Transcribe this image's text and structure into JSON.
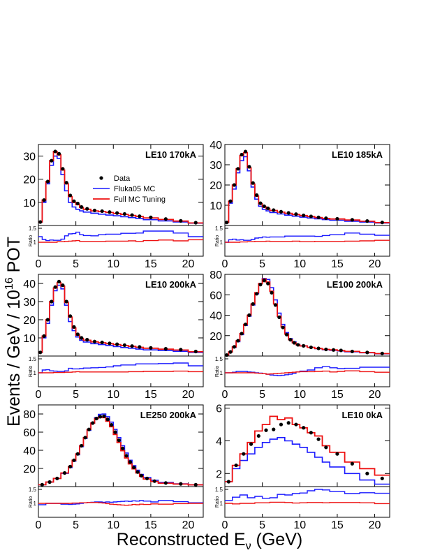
{
  "figure": {
    "ylabel_prefix": "Events / GeV / 10",
    "ylabel_exp": "16",
    "ylabel_suffix": " POT",
    "xlabel_prefix": "Reconstructed E",
    "xlabel_sub": "ν",
    "xlabel_suffix": " (GeV)",
    "ratio_label": "Ratio",
    "legend": {
      "data": "Data",
      "fluka": "Fluka05 MC",
      "tuned": "Full MC Tuning"
    },
    "colors": {
      "data": "#000000",
      "fluka": "#1a1aff",
      "tuned": "#ee1111"
    }
  },
  "chart_data": [
    {
      "type": "line",
      "title": "LE10 170kA",
      "xlim": [
        0,
        22
      ],
      "ylim": [
        0,
        35
      ],
      "yticks": [
        10,
        20,
        30
      ],
      "xticks": [
        0,
        5,
        10,
        15,
        20
      ],
      "show_legend": true,
      "bins": [
        0,
        0.5,
        1,
        1.5,
        2,
        2.5,
        3,
        3.5,
        4,
        4.5,
        5,
        5.5,
        6,
        7,
        8,
        9,
        10,
        11,
        12,
        13,
        14,
        16,
        18,
        20,
        22
      ],
      "data": [
        1.5,
        11,
        19,
        28,
        32,
        31,
        24.5,
        18.5,
        13,
        10.5,
        9.5,
        8,
        7.2,
        6.5,
        6.2,
        5.8,
        5.4,
        5,
        4.5,
        4,
        3.5,
        2.8,
        2,
        1.2
      ],
      "fluka": [
        1.5,
        10,
        18,
        26,
        30,
        29,
        22,
        15,
        10,
        8,
        7,
        6.3,
        5.8,
        5.3,
        4.9,
        4.5,
        4.2,
        3.8,
        3.4,
        3,
        2.5,
        2,
        1.5,
        1
      ],
      "tuned": [
        1.5,
        11,
        19,
        28,
        32,
        30.5,
        24,
        18,
        12.5,
        10,
        9,
        7.8,
        7,
        6.3,
        6,
        5.6,
        5.2,
        4.8,
        4.3,
        3.9,
        3.3,
        2.6,
        1.9,
        1.1
      ],
      "ratio_ylim": [
        0.5,
        1.6
      ],
      "ratio_fluka": [
        1.2,
        1.1,
        1.06,
        1.08,
        1.07,
        1.07,
        1.11,
        1.23,
        1.3,
        1.31,
        1.36,
        1.27,
        1.24,
        1.23,
        1.27,
        1.29,
        1.29,
        1.32,
        1.32,
        1.33,
        1.4,
        1.4,
        1.33,
        1.2
      ],
      "ratio_tuned": [
        1.0,
        1.0,
        1.0,
        1.0,
        1.0,
        1.02,
        1.02,
        1.03,
        1.04,
        1.05,
        1.06,
        1.03,
        1.03,
        1.03,
        1.03,
        1.04,
        1.04,
        1.04,
        1.05,
        1.03,
        1.06,
        1.08,
        1.05,
        1.09
      ]
    },
    {
      "type": "line",
      "title": "LE10 185kA",
      "xlim": [
        0,
        22
      ],
      "ylim": [
        0,
        40
      ],
      "yticks": [
        10,
        20,
        30,
        40
      ],
      "xticks": [
        0,
        5,
        10,
        15,
        20
      ],
      "show_legend": false,
      "bins": [
        0,
        0.5,
        1,
        1.5,
        2,
        2.5,
        3,
        3.5,
        4,
        4.5,
        5,
        5.5,
        6,
        7,
        8,
        9,
        10,
        11,
        12,
        13,
        14,
        16,
        18,
        20,
        22
      ],
      "data": [
        1.5,
        12,
        20,
        28,
        35,
        36.5,
        29,
        21,
        15,
        11,
        9.5,
        8.5,
        7.6,
        6.8,
        6.2,
        5.6,
        5,
        4.5,
        4,
        3.6,
        3.3,
        2.8,
        2.2,
        1.5
      ],
      "fluka": [
        1.5,
        11,
        18,
        26,
        32,
        34,
        27,
        19,
        13,
        9.5,
        8,
        7.2,
        6.4,
        5.7,
        5.1,
        4.6,
        4.1,
        3.7,
        3.3,
        2.9,
        2.6,
        2.1,
        1.7,
        1.2
      ],
      "tuned": [
        1.5,
        12,
        20,
        28,
        34.5,
        36,
        28.5,
        20.5,
        14.5,
        10.7,
        9.2,
        8.2,
        7.4,
        6.6,
        6,
        5.4,
        4.9,
        4.4,
        3.9,
        3.5,
        3.2,
        2.7,
        2.1,
        1.4
      ],
      "ratio_ylim": [
        0.5,
        1.6
      ],
      "ratio_fluka": [
        1.0,
        1.09,
        1.11,
        1.08,
        1.09,
        1.07,
        1.07,
        1.1,
        1.15,
        1.16,
        1.19,
        1.18,
        1.19,
        1.19,
        1.22,
        1.22,
        1.22,
        1.22,
        1.21,
        1.24,
        1.27,
        1.33,
        1.29,
        1.25
      ],
      "ratio_tuned": [
        1.0,
        1.0,
        1.0,
        1.0,
        1.01,
        1.01,
        1.02,
        1.02,
        1.03,
        1.03,
        1.03,
        1.04,
        1.03,
        1.03,
        1.03,
        1.04,
        1.02,
        1.02,
        1.03,
        1.03,
        1.03,
        1.04,
        1.05,
        1.07
      ]
    },
    {
      "type": "line",
      "title": "LE10 200kA",
      "xlim": [
        0,
        22
      ],
      "ylim": [
        0,
        45
      ],
      "yticks": [
        10,
        20,
        30,
        40
      ],
      "xticks": [
        0,
        5,
        10,
        15,
        20
      ],
      "show_legend": false,
      "bins": [
        0,
        0.5,
        1,
        1.5,
        2,
        2.5,
        3,
        3.5,
        4,
        4.5,
        5,
        5.5,
        6,
        7,
        8,
        9,
        10,
        11,
        12,
        13,
        14,
        16,
        18,
        20,
        22
      ],
      "data": [
        2,
        11,
        20,
        30,
        38,
        41,
        39,
        30,
        22,
        16,
        12,
        10,
        9,
        8,
        7.5,
        7,
        6.5,
        6,
        5.5,
        5,
        4.5,
        4,
        3.5,
        2.5
      ],
      "fluka": [
        2,
        10,
        18,
        28,
        36,
        39,
        37,
        28,
        19,
        14,
        10.5,
        8.7,
        7.7,
        6.8,
        6.3,
        5.8,
        5.2,
        4.7,
        4.3,
        3.8,
        3.4,
        3,
        2.6,
        2
      ],
      "tuned": [
        2,
        11,
        20,
        30,
        37.5,
        40.5,
        38.5,
        29.5,
        21.5,
        15.5,
        11.5,
        9.7,
        8.7,
        7.8,
        7.3,
        6.8,
        6.3,
        5.8,
        5.3,
        4.8,
        4.3,
        3.8,
        3.3,
        2.4
      ],
      "ratio_ylim": [
        0.5,
        1.6
      ],
      "ratio_fluka": [
        1.0,
        1.1,
        1.11,
        1.07,
        1.06,
        1.05,
        1.05,
        1.07,
        1.16,
        1.14,
        1.14,
        1.15,
        1.17,
        1.18,
        1.19,
        1.21,
        1.25,
        1.28,
        1.28,
        1.32,
        1.32,
        1.33,
        1.35,
        1.25
      ],
      "ratio_tuned": [
        1.0,
        1.0,
        1.0,
        1.0,
        1.01,
        1.01,
        1.01,
        1.02,
        1.02,
        1.03,
        1.04,
        1.03,
        1.03,
        1.03,
        1.03,
        1.03,
        1.03,
        1.03,
        1.04,
        1.04,
        1.05,
        1.05,
        1.06,
        1.04
      ]
    },
    {
      "type": "line",
      "title": "LE100 200kA",
      "xlim": [
        0,
        22
      ],
      "ylim": [
        0,
        80
      ],
      "yticks": [
        20,
        40,
        60,
        80
      ],
      "xticks": [
        0,
        5,
        10,
        15,
        20
      ],
      "show_legend": false,
      "bins": [
        0,
        0.5,
        1,
        1.5,
        2,
        2.5,
        3,
        3.5,
        4,
        4.5,
        5,
        5.5,
        6,
        6.5,
        7,
        7.5,
        8,
        8.5,
        9,
        9.5,
        10,
        11,
        12,
        13,
        14,
        15,
        16,
        18,
        20,
        22
      ],
      "data": [
        1,
        4,
        9,
        15,
        22,
        31,
        40,
        51,
        61,
        70,
        74,
        71,
        62,
        50,
        38,
        28,
        21,
        16,
        13,
        11,
        10,
        8.5,
        7.5,
        6.5,
        6,
        5.5,
        4.5,
        3.5,
        2.5
      ],
      "fluka": [
        1,
        4,
        8.5,
        14,
        21,
        30,
        39,
        50,
        61,
        71,
        76,
        75,
        67,
        55,
        42,
        31,
        23,
        17,
        14,
        11.5,
        10,
        8.4,
        7.2,
        6.2,
        5.6,
        5,
        4.2,
        3.2,
        2.2
      ],
      "tuned": [
        1,
        4,
        9,
        15,
        22,
        31,
        40,
        51,
        62,
        71,
        75.5,
        72.5,
        63.5,
        51,
        39,
        28.5,
        21.5,
        16,
        13,
        11,
        9.9,
        8.5,
        7.4,
        6.5,
        6,
        5.3,
        4.5,
        3.4,
        2.4
      ],
      "ratio_ylim": [
        0.5,
        1.6
      ],
      "ratio_fluka": [
        1.0,
        1.0,
        1.02,
        1.05,
        1.05,
        1.05,
        1.03,
        1.02,
        1.0,
        0.99,
        0.97,
        0.95,
        0.92,
        0.91,
        0.9,
        0.91,
        0.93,
        0.95,
        0.98,
        1.03,
        1.06,
        1.1,
        1.18,
        1.22,
        1.18,
        1.15,
        1.16,
        1.2,
        1.2
      ],
      "ratio_tuned": [
        1.0,
        1.0,
        1.0,
        1.0,
        1.0,
        1.0,
        1.0,
        1.0,
        0.99,
        0.98,
        0.97,
        0.95,
        0.96,
        0.97,
        0.98,
        0.99,
        1.0,
        1.01,
        1.02,
        1.03,
        1.04,
        1.04,
        1.05,
        1.06,
        1.03,
        1.05,
        1.07,
        1.04,
        1.02
      ]
    },
    {
      "type": "line",
      "title": "LE250 200kA",
      "xlim": [
        0,
        22
      ],
      "ylim": [
        0,
        90
      ],
      "yticks": [
        20,
        40,
        60,
        80
      ],
      "xticks": [
        0,
        5,
        10,
        15,
        20
      ],
      "show_legend": false,
      "bins": [
        0,
        1,
        2,
        3,
        4,
        4.5,
        5,
        5.5,
        6,
        6.5,
        7,
        7.5,
        8,
        8.5,
        9,
        9.5,
        10,
        10.5,
        11,
        11.5,
        12,
        12.5,
        13,
        13.5,
        14,
        15,
        16,
        18,
        20,
        22
      ],
      "data": [
        2,
        5,
        9,
        15,
        22,
        29,
        36,
        45,
        54,
        63,
        70,
        75,
        77,
        77.5,
        74,
        68,
        60,
        51,
        42,
        34,
        27,
        21,
        16,
        12,
        9,
        6,
        4,
        3,
        2
      ],
      "fluka": [
        2,
        5,
        9,
        14.5,
        21,
        28,
        35,
        44,
        53,
        62,
        70,
        76,
        79.5,
        80,
        77,
        71,
        63,
        54,
        45,
        37,
        29,
        23,
        18,
        13.5,
        10,
        7,
        4.5,
        3,
        2
      ],
      "tuned": [
        2,
        5,
        9,
        15,
        22,
        29,
        36,
        45,
        54,
        63,
        70,
        75,
        76.5,
        76,
        72,
        66,
        57.5,
        48.5,
        39.5,
        31.5,
        25,
        19.5,
        15,
        11.2,
        8.4,
        5.6,
        3.8,
        2.8,
        1.9
      ],
      "ratio_ylim": [
        0.5,
        1.6
      ],
      "ratio_fluka": [
        0.95,
        1.0,
        1.0,
        0.97,
        0.96,
        0.97,
        0.98,
        1.0,
        1.02,
        1.03,
        1.04,
        1.05,
        1.05,
        1.04,
        1.05,
        1.04,
        1.05,
        1.06,
        1.07,
        1.08,
        1.07,
        1.09,
        1.08,
        1.1,
        1.08,
        1.05,
        1.1,
        1.06,
        1.02
      ],
      "ratio_tuned": [
        1.0,
        1.0,
        1.0,
        1.0,
        1.0,
        1.01,
        1.01,
        1.02,
        1.02,
        1.03,
        1.03,
        1.03,
        1.02,
        1.01,
        0.99,
        0.97,
        0.96,
        0.95,
        0.94,
        0.93,
        0.94,
        0.96,
        0.95,
        0.97,
        0.96,
        0.98,
        0.97,
        0.99,
        1.0
      ]
    },
    {
      "type": "line",
      "title": "LE10 0kA",
      "xlim": [
        0,
        22
      ],
      "ylim": [
        1.2,
        6.2
      ],
      "yticks": [
        2,
        4,
        6
      ],
      "xticks": [
        0,
        5,
        10,
        15,
        20
      ],
      "show_legend": false,
      "bins": [
        0,
        1,
        2,
        3,
        4,
        5,
        6,
        7,
        8,
        9,
        10,
        11,
        12,
        13,
        14,
        16,
        18,
        20,
        22
      ],
      "data": [
        1.5,
        2.5,
        3.2,
        3.8,
        4.3,
        4.65,
        4.7,
        5.0,
        5.1,
        5.0,
        4.8,
        4.5,
        4.1,
        3.6,
        3.2,
        2.6,
        2.0,
        1.7
      ],
      "fluka": [
        1.5,
        2.3,
        2.8,
        3.2,
        3.6,
        3.9,
        4.1,
        4.2,
        4.0,
        3.8,
        3.6,
        3.3,
        3.0,
        2.7,
        2.4,
        2.0,
        1.6,
        1.35
      ],
      "tuned": [
        1.5,
        2.5,
        3.2,
        3.9,
        4.6,
        5.0,
        5.5,
        5.3,
        5.4,
        5.0,
        4.8,
        4.5,
        4.3,
        3.7,
        3.3,
        2.7,
        2.3,
        1.9
      ],
      "ratio_ylim": [
        0.5,
        1.6
      ],
      "ratio_fluka": [
        1.1,
        1.22,
        1.3,
        1.2,
        1.25,
        1.18,
        1.2,
        1.32,
        1.3,
        1.35,
        1.37,
        1.45,
        1.5,
        1.48,
        1.42,
        1.35,
        1.38,
        1.36
      ],
      "ratio_tuned": [
        1.0,
        0.98,
        1.0,
        1.0,
        1.02,
        1.02,
        1.04,
        1.04,
        1.03,
        1.01,
        1.02,
        1.03,
        1.03,
        1.02,
        1.03,
        1.03,
        1.02,
        0.99
      ]
    }
  ]
}
